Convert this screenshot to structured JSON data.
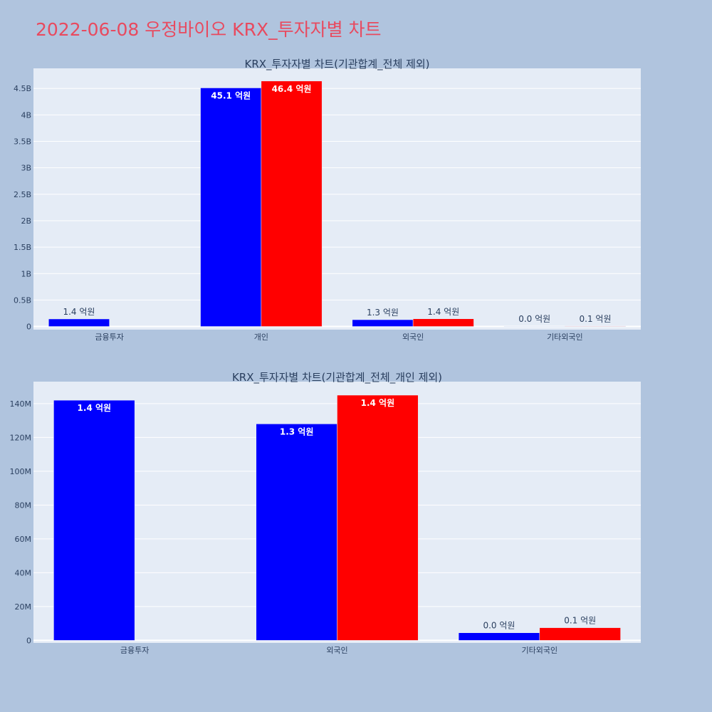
{
  "title": "2022-06-08 우정바이오 KRX_투자자별 차트",
  "chart_data": [
    {
      "type": "bar",
      "title": "KRX_투자자별 차트(기관합계_전체 제외)",
      "categories": [
        "금융투자",
        "개인",
        "외국인",
        "기타외국인"
      ],
      "series": [
        {
          "color": "#0000ff",
          "values": [
            142000000,
            4510000000,
            128000000,
            4500000
          ],
          "labels": [
            "1.4 억원",
            "45.1 억원",
            "1.3 억원",
            "0.0 억원"
          ]
        },
        {
          "color": "#ff0000",
          "values": [
            0,
            4640000000,
            145000000,
            7500000
          ],
          "labels": [
            "",
            "46.4 억원",
            "1.4 억원",
            "0.1 억원"
          ]
        }
      ],
      "yticks": [
        0,
        500000000,
        1000000000,
        1500000000,
        2000000000,
        2500000000,
        3000000000,
        3500000000,
        4000000000,
        4500000000
      ],
      "ytick_labels": [
        "0",
        "0.5B",
        "1B",
        "1.5B",
        "2B",
        "2.5B",
        "3B",
        "3.5B",
        "4B",
        "4.5B"
      ],
      "ylim": [
        -60000000,
        4880000000
      ]
    },
    {
      "type": "bar",
      "title": "KRX_투자자별 차트(기관합계_전체_개인 제외)",
      "categories": [
        "금융투자",
        "외국인",
        "기타외국인"
      ],
      "series": [
        {
          "color": "#0000ff",
          "values": [
            142000000,
            128000000,
            4500000
          ],
          "labels": [
            "1.4 억원",
            "1.3 억원",
            "0.0 억원"
          ]
        },
        {
          "color": "#ff0000",
          "values": [
            0,
            145000000,
            7500000
          ],
          "labels": [
            "",
            "1.4 억원",
            "0.1 억원"
          ]
        }
      ],
      "yticks": [
        0,
        20000000,
        40000000,
        60000000,
        80000000,
        100000000,
        120000000,
        140000000
      ],
      "ytick_labels": [
        "0",
        "20M",
        "40M",
        "60M",
        "80M",
        "100M",
        "120M",
        "140M"
      ],
      "ylim": [
        -1500000,
        153000000
      ]
    }
  ]
}
